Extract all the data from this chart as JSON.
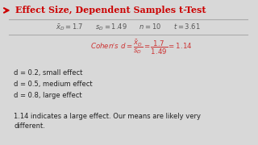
{
  "title": "Effect Size, Dependent Samples t-Test",
  "title_color": "#cc0000",
  "background_color": "#d8d8d8",
  "panel_color": "#f0f0f0",
  "effect_lines": [
    "d = 0.2, small effect",
    "d = 0.5, medium effect",
    "d = 0.8, large effect"
  ],
  "conclusion": "1.14 indicates a large effect. Our means are likely very\ndifferent.",
  "text_color": "#222222",
  "line_color": "#aaaaaa"
}
